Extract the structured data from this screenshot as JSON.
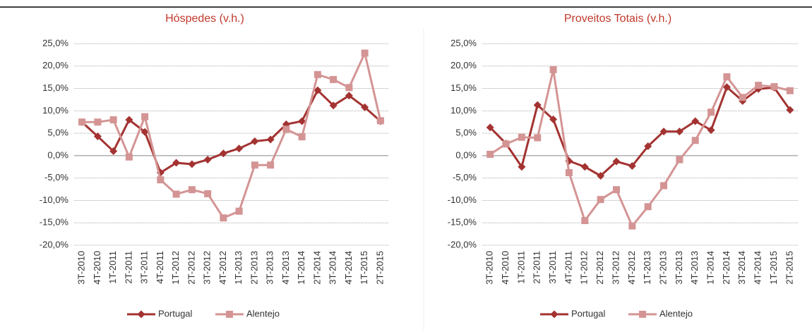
{
  "chart_data": [
    {
      "type": "line",
      "title": "Hóspedes (v.h.)",
      "categories": [
        "3T-2010",
        "4T-2010",
        "1T-2011",
        "2T-2011",
        "3T-2011",
        "4T-2011",
        "1T-2012",
        "2T-2012",
        "3T-2012",
        "4T-2012",
        "1T-2013",
        "2T-2013",
        "3T-2013",
        "4T-2013",
        "1T-2014",
        "2T-2014",
        "3T-2014",
        "4T-2014",
        "1T-2015",
        "2T-2015"
      ],
      "series": [
        {
          "name": "Portugal",
          "color": "#a33331",
          "marker": "diamond",
          "values": [
            7.5,
            4.3,
            1.0,
            8.0,
            5.3,
            -3.8,
            -1.6,
            -1.9,
            -0.9,
            0.5,
            1.6,
            3.2,
            3.6,
            7.0,
            7.7,
            14.6,
            11.2,
            13.4,
            10.8,
            7.7
          ]
        },
        {
          "name": "Alentejo",
          "color": "#d49494",
          "marker": "square",
          "values": [
            7.5,
            7.5,
            8.0,
            -0.3,
            8.7,
            -5.4,
            -8.6,
            -7.6,
            -8.5,
            -13.9,
            -12.4,
            -2.1,
            -2.1,
            5.9,
            4.2,
            18.1,
            17.0,
            15.2,
            22.9,
            7.8
          ]
        }
      ],
      "ylim": [
        -20,
        25
      ],
      "yticks": [
        {
          "value": -20,
          "label": "-20,0%"
        },
        {
          "value": -15,
          "label": "-15,0%"
        },
        {
          "value": -10,
          "label": "-10,0%"
        },
        {
          "value": -5,
          "label": "-5,0%"
        },
        {
          "value": 0,
          "label": "0,0%"
        },
        {
          "value": 5,
          "label": "5,0%"
        },
        {
          "value": 10,
          "label": "10,0%"
        },
        {
          "value": 15,
          "label": "15,0%"
        },
        {
          "value": 20,
          "label": "20,0%"
        },
        {
          "value": 25,
          "label": "25,0%"
        }
      ],
      "grid": true,
      "legend": "bottom"
    },
    {
      "type": "line",
      "title": "Proveitos Totais (v.h.)",
      "categories": [
        "3T-2010",
        "4T-2010",
        "1T-2011",
        "2T-2011",
        "3T-2011",
        "4T-2011",
        "1T-2012",
        "2T-2012",
        "3T-2012",
        "4T-2012",
        "1T-2013",
        "2T-2013",
        "3T-2013",
        "4T-2013",
        "1T-2014",
        "2T-2014",
        "3T-2014",
        "4T-2014",
        "1T-2015",
        "2T-2015"
      ],
      "series": [
        {
          "name": "Portugal",
          "color": "#a33331",
          "marker": "diamond",
          "values": [
            6.3,
            2.7,
            -2.5,
            11.3,
            8.1,
            -1.2,
            -2.5,
            -4.5,
            -1.3,
            -2.3,
            2.1,
            5.4,
            5.4,
            7.7,
            5.7,
            15.3,
            12.2,
            14.9,
            15.2,
            10.2
          ]
        },
        {
          "name": "Alentejo",
          "color": "#d49494",
          "marker": "square",
          "values": [
            0.3,
            2.6,
            4.1,
            4.0,
            19.2,
            -3.8,
            -14.5,
            -9.8,
            -7.6,
            -15.7,
            -11.4,
            -6.7,
            -0.9,
            3.4,
            9.7,
            17.6,
            13.0,
            15.7,
            15.4,
            14.5
          ]
        }
      ],
      "ylim": [
        -20,
        25
      ],
      "yticks": [
        {
          "value": -20,
          "label": "-20,0%"
        },
        {
          "value": -15,
          "label": "-15,0%"
        },
        {
          "value": -10,
          "label": "-10,0%"
        },
        {
          "value": -5,
          "label": "-5,0%"
        },
        {
          "value": 0,
          "label": "0,0%"
        },
        {
          "value": 5,
          "label": "5,0%"
        },
        {
          "value": 10,
          "label": "10,0%"
        },
        {
          "value": 15,
          "label": "15,0%"
        },
        {
          "value": 20,
          "label": "20,0%"
        },
        {
          "value": 25,
          "label": "25,0%"
        }
      ],
      "grid": true,
      "legend": "bottom"
    }
  ]
}
